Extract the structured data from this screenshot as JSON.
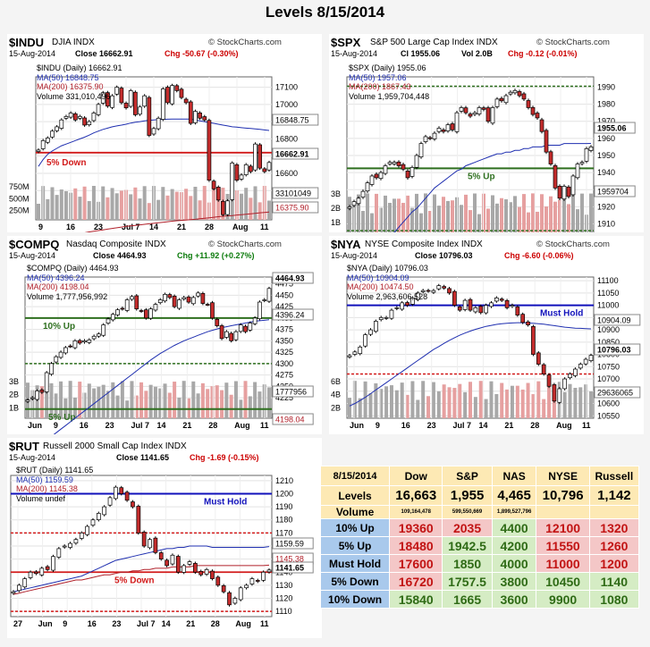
{
  "page_title": "Levels 8/15/2014",
  "brand": "© StockCharts.com",
  "colors": {
    "up": "#ffffff",
    "down": "#c42c2c",
    "ma50": "#1f2fb0",
    "ma200": "#b0202a",
    "level": "#d21a1a",
    "green": "#2e6f1f",
    "blue": "#1111bb",
    "vol_up": "#a8a8a8",
    "vol_down": "#e6a0a0"
  },
  "panels": {
    "indu": {
      "symbol": "$INDU",
      "name": "DJIA  INDX",
      "date": "15-Aug-2014",
      "close": "Close 16662.91",
      "chg": "Chg -50.67 (-0.30%)",
      "legend": [
        "$INDU (Daily) 16662.91",
        "MA(50) 16848.75",
        "MA(200) 16375.90",
        "Volume 331,010,496"
      ],
      "y_ticks": [
        "17100",
        "17000",
        "16900",
        "16800",
        "16700",
        "16600",
        "16500"
      ],
      "vol_ticks": [
        "750M",
        "500M",
        "250M"
      ],
      "x_ticks": [
        "9",
        "16",
        "23",
        "Jul 7",
        "14",
        "21",
        "28",
        "Aug",
        "11"
      ],
      "value_tags": [
        "16848.75",
        "16662.91",
        "33101049",
        "16375.90"
      ],
      "line_labels": [
        "5% Down"
      ]
    },
    "spx": {
      "symbol": "$SPX",
      "name": "S&P 500 Large Cap Index  INDX",
      "date": "15-Aug-2014",
      "close": "Cl 1955.06",
      "vol": "Vol 2.0B",
      "chg": "Chg -0.12 (-0.01%)",
      "legend": [
        "$SPX (Daily) 1955.06",
        "MA(50) 1957.06",
        "MA(200) 1867.43",
        "Volume 1,959,704,448"
      ],
      "y_ticks": [
        "1990",
        "1980",
        "1970",
        "1960",
        "1950",
        "1940",
        "1930",
        "1920",
        "1910"
      ],
      "vol_ticks": [
        "3B",
        "2B",
        "1B"
      ],
      "x_ticks": [
        "Jun",
        "9",
        "16",
        "23",
        "Jul 7",
        "14",
        "21",
        "28",
        "Aug",
        "11"
      ],
      "value_tags": [
        "1955.06",
        "1959704"
      ],
      "line_labels": [
        "5% Up"
      ]
    },
    "compq": {
      "symbol": "$COMPQ",
      "name": "Nasdaq Composite  INDX",
      "date": "15-Aug-2014",
      "close": "Close 4464.93",
      "chg": "Chg +11.92 (+0.27%)",
      "legend": [
        "$COMPQ (Daily) 4464.93",
        "MA(50) 4396.24",
        "MA(200) 4198.04",
        "Volume 1,777,956,992"
      ],
      "y_ticks": [
        "4475",
        "4450",
        "4425",
        "4400",
        "4375",
        "4350",
        "4325",
        "4300",
        "4275",
        "4250",
        "4225"
      ],
      "vol_ticks": [
        "3B",
        "2B",
        "1B"
      ],
      "x_ticks": [
        "Jun",
        "9",
        "16",
        "23",
        "Jul 7",
        "14",
        "21",
        "28",
        "Aug",
        "11"
      ],
      "value_tags": [
        "4464.93",
        "4396.24",
        "1777956",
        "4198.04"
      ],
      "line_labels": [
        "10% Up",
        "5% Up"
      ]
    },
    "nya": {
      "symbol": "$NYA",
      "name": "NYSE Composite Index  INDX",
      "date": "15-Aug-2014",
      "close": "Close 10796.03",
      "chg": "Chg -6.60 (-0.06%)",
      "legend": [
        "$NYA (Daily) 10796.03",
        "MA(50) 10904.09",
        "MA(200) 10474.50",
        "Volume 2,963,606,528"
      ],
      "y_ticks": [
        "11100",
        "11050",
        "11000",
        "10950",
        "10900",
        "10850",
        "10800",
        "10750",
        "10700",
        "10650",
        "10600",
        "10550"
      ],
      "vol_ticks": [
        "6B",
        "4B",
        "2B"
      ],
      "x_ticks": [
        "Jun",
        "9",
        "16",
        "23",
        "Jul 7",
        "14",
        "21",
        "28",
        "Aug",
        "11"
      ],
      "value_tags": [
        "10904.09",
        "10796.03",
        "29636065"
      ],
      "line_labels": [
        "Must Hold"
      ]
    },
    "rut": {
      "symbol": "$RUT",
      "name": "Russell 2000 Small Cap Index  INDX",
      "date": "15-Aug-2014",
      "close": "Close 1141.65",
      "chg": "Chg -1.69 (-0.15%)",
      "legend": [
        "$RUT (Daily) 1141.65",
        "MA(50) 1159.59",
        "MA(200) 1145.38",
        "Volume undef"
      ],
      "y_ticks": [
        "1210",
        "1200",
        "1190",
        "1180",
        "1170",
        "1160",
        "1150",
        "1140",
        "1130",
        "1120",
        "1110"
      ],
      "x_ticks": [
        "27",
        "Jun",
        "9",
        "16",
        "23",
        "Jul 7",
        "14",
        "21",
        "28",
        "Aug",
        "11"
      ],
      "value_tags": [
        "1159.59",
        "1145.38",
        "1141.65"
      ],
      "line_labels": [
        "Must Hold",
        "5% Down"
      ]
    }
  },
  "table": {
    "date": "8/15/2014",
    "headers": [
      "Dow",
      "S&P",
      "NAS",
      "NYSE",
      "Russell"
    ],
    "levels_label": "Levels",
    "levels": [
      "16,663",
      "1,955",
      "4,465",
      "10,796",
      "1,142"
    ],
    "volume_label": "Volume",
    "volumes": [
      "109,164,478",
      "599,550,669",
      "1,899,527,796",
      "",
      ""
    ],
    "rows": [
      {
        "label": "10% Up",
        "values": [
          "19360",
          "2035",
          "4400",
          "12100",
          "1320"
        ],
        "colors": [
          "red",
          "red",
          "green",
          "red",
          "red"
        ]
      },
      {
        "label": "5% Up",
        "values": [
          "18480",
          "1942.5",
          "4200",
          "11550",
          "1260"
        ],
        "colors": [
          "red",
          "green",
          "green",
          "red",
          "red"
        ]
      },
      {
        "label": "Must Hold",
        "values": [
          "17600",
          "1850",
          "4000",
          "11000",
          "1200"
        ],
        "colors": [
          "red",
          "green",
          "green",
          "red",
          "red"
        ]
      },
      {
        "label": "5% Down",
        "values": [
          "16720",
          "1757.5",
          "3800",
          "10450",
          "1140"
        ],
        "colors": [
          "red",
          "green",
          "green",
          "green",
          "green"
        ]
      },
      {
        "label": "10% Down",
        "values": [
          "15840",
          "1665",
          "3600",
          "9900",
          "1080"
        ],
        "colors": [
          "green",
          "green",
          "green",
          "green",
          "green"
        ]
      }
    ]
  },
  "chart_data": [
    {
      "type": "candlestick",
      "title": "$INDU",
      "ylim": [
        16330,
        17160
      ],
      "close": [
        16735,
        16790,
        16805,
        16845,
        16870,
        16910,
        16930,
        16950,
        16910,
        16930,
        16880,
        16900,
        16950,
        17000,
        17068,
        16990,
        17050,
        17100,
        17010,
        16980,
        17080,
        16940,
        16985,
        17050,
        16820,
        16860,
        16920,
        17090,
        17010,
        17110,
        17080,
        17040,
        17010,
        16890,
        16960,
        16920,
        16910,
        16560,
        16510,
        16445,
        16360,
        16440,
        16660,
        16560,
        16590,
        16650,
        16610,
        16770,
        16630,
        16610,
        16662.91
      ],
      "ma50": [
        16640,
        16680,
        16710,
        16730,
        16745,
        16760,
        16770,
        16780,
        16790,
        16800,
        16810,
        16822,
        16835,
        16845,
        16855,
        16862,
        16870,
        16875,
        16880,
        16885,
        16892,
        16897,
        16900,
        16905,
        16908,
        16910,
        16912,
        16913,
        16914,
        16915,
        16915,
        16915,
        16915,
        16915,
        16910,
        16905,
        16900,
        16895,
        16890,
        16885,
        16880,
        16875,
        16870,
        16868,
        16865,
        16862,
        16860,
        16858,
        16855,
        16852,
        16848.75
      ],
      "ma200": [
        16210,
        16215,
        16220,
        16224,
        16228,
        16233,
        16238,
        16242,
        16246,
        16250,
        16255,
        16260,
        16264,
        16268,
        16272,
        16276,
        16280,
        16284,
        16288,
        16292,
        16295,
        16298,
        16301,
        16304,
        16307,
        16310,
        16313,
        16316,
        16319,
        16322,
        16325,
        16327,
        16329,
        16331,
        16333,
        16336,
        16339,
        16342,
        16345,
        16348,
        16351,
        16353,
        16355,
        16358,
        16360,
        16362,
        16365,
        16368,
        16371,
        16373,
        16375.9
      ],
      "levels": [
        16720
      ]
    },
    {
      "type": "candlestick",
      "title": "$SPX",
      "ylim": [
        1904,
        1996
      ],
      "close": [
        1920,
        1923,
        1925,
        1929,
        1934,
        1938,
        1937,
        1940,
        1944,
        1946,
        1946,
        1944,
        1942,
        1937,
        1943,
        1950,
        1957,
        1961,
        1960,
        1963,
        1966,
        1964,
        1968,
        1965,
        1975,
        1978,
        1975,
        1973,
        1975,
        1978,
        1977,
        1970,
        1978,
        1983,
        1982,
        1985,
        1987,
        1988,
        1985,
        1983,
        1978,
        1974,
        1972,
        1964,
        1952,
        1945,
        1931,
        1925,
        1932,
        1926,
        1938,
        1945,
        1946,
        1954,
        1955.06
      ],
      "ma50": [
        1875,
        1878,
        1881,
        1884,
        1887,
        1890,
        1893,
        1896,
        1899,
        1902,
        1905,
        1908,
        1911,
        1914,
        1917,
        1919,
        1922,
        1925,
        1928,
        1931,
        1933,
        1935,
        1937,
        1939,
        1941,
        1942,
        1944,
        1945,
        1946,
        1947,
        1948,
        1949,
        1950,
        1951,
        1951,
        1952,
        1952,
        1953,
        1953,
        1954,
        1954,
        1955,
        1955,
        1955,
        1956,
        1956,
        1956,
        1956,
        1957,
        1957,
        1957,
        1957,
        1957,
        1957,
        1957.06
      ],
      "levels": [
        1942.5
      ]
    },
    {
      "type": "candlestick",
      "title": "$COMPQ",
      "ylim": [
        4180,
        4490
      ],
      "close": [
        4220,
        4225,
        4240,
        4237,
        4280,
        4300,
        4315,
        4325,
        4335,
        4338,
        4350,
        4345,
        4350,
        4352,
        4360,
        4365,
        4385,
        4398,
        4408,
        4418,
        4420,
        4440,
        4447,
        4420,
        4415,
        4400,
        4420,
        4430,
        4440,
        4452,
        4445,
        4425,
        4440,
        4445,
        4435,
        4445,
        4455,
        4432,
        4430,
        4400,
        4383,
        4355,
        4370,
        4350,
        4370,
        4385,
        4370,
        4389,
        4400,
        4435,
        4440,
        4464.93
      ],
      "ma50": [
        4100,
        4108,
        4116,
        4124,
        4132,
        4140,
        4148,
        4156,
        4164,
        4172,
        4180,
        4188,
        4196,
        4204,
        4212,
        4220,
        4228,
        4236,
        4244,
        4252,
        4260,
        4268,
        4276,
        4284,
        4292,
        4300,
        4308,
        4315,
        4322,
        4328,
        4334,
        4340,
        4345,
        4350,
        4354,
        4358,
        4362,
        4366,
        4370,
        4373,
        4376,
        4379,
        4381,
        4383,
        4385,
        4387,
        4389,
        4391,
        4393,
        4394,
        4395,
        4396.24
      ],
      "levels": [
        4400,
        4300,
        4200
      ]
    },
    {
      "type": "candlestick",
      "title": "$NYA",
      "ylim": [
        10540,
        11115
      ],
      "close": [
        10795,
        10810,
        10830,
        10880,
        10900,
        10935,
        10950,
        10950,
        10980,
        10990,
        11010,
        11000,
        11030,
        11050,
        11060,
        11058,
        11060,
        11080,
        11070,
        11050,
        11000,
        10980,
        11020,
        10980,
        10990,
        10970,
        11000,
        11010,
        11030,
        11020,
        10990,
        11000,
        10960,
        10930,
        10920,
        10800,
        10760,
        10720,
        10670,
        10610,
        10660,
        10700,
        10720,
        10740,
        10760,
        10780,
        10796.03
      ],
      "ma50": [
        10590,
        10600,
        10612,
        10625,
        10640,
        10655,
        10670,
        10685,
        10700,
        10715,
        10730,
        10745,
        10760,
        10775,
        10790,
        10805,
        10820,
        10832,
        10845,
        10857,
        10868,
        10878,
        10887,
        10895,
        10902,
        10908,
        10914,
        10918,
        10922,
        10925,
        10927,
        10928,
        10929,
        10929,
        10928,
        10927,
        10925,
        10923,
        10920,
        10917,
        10914,
        10911,
        10909,
        10907,
        10906,
        10905,
        10904.09
      ],
      "levels": [
        11000,
        10450
      ]
    },
    {
      "type": "candlestick",
      "title": "$RUT",
      "ylim": [
        1106,
        1214
      ],
      "close": [
        1125,
        1130,
        1135,
        1140,
        1139,
        1143,
        1142,
        1152,
        1158,
        1160,
        1162,
        1165,
        1170,
        1175,
        1180,
        1185,
        1190,
        1197,
        1205,
        1200,
        1195,
        1190,
        1170,
        1160,
        1165,
        1155,
        1150,
        1145,
        1153,
        1140,
        1145,
        1148,
        1140,
        1138,
        1142,
        1135,
        1130,
        1125,
        1115,
        1120,
        1128,
        1130,
        1135,
        1133,
        1140,
        1141.65
      ],
      "ma50": [
        1125,
        1126,
        1127,
        1128,
        1129,
        1130,
        1131,
        1132,
        1133,
        1134,
        1135,
        1136,
        1137,
        1139,
        1141,
        1143,
        1145,
        1147,
        1149,
        1150,
        1151,
        1152,
        1153,
        1154,
        1155,
        1156,
        1157,
        1158,
        1158,
        1159,
        1159,
        1160,
        1160,
        1160,
        1160,
        1159,
        1159,
        1159,
        1159,
        1159,
        1159,
        1159,
        1159,
        1159,
        1159,
        1159.59
      ],
      "ma200": [
        1123,
        1124,
        1125,
        1126,
        1127,
        1128,
        1129,
        1130,
        1131,
        1132,
        1133,
        1134,
        1134,
        1135,
        1136,
        1137,
        1138,
        1138,
        1139,
        1140,
        1140,
        1141,
        1141,
        1142,
        1142,
        1143,
        1143,
        1143,
        1144,
        1144,
        1144,
        1144,
        1145,
        1145,
        1145,
        1145,
        1145,
        1145,
        1145,
        1145,
        1145,
        1145,
        1145,
        1145,
        1145,
        1145.38
      ],
      "levels": [
        1200,
        1140
      ]
    }
  ]
}
